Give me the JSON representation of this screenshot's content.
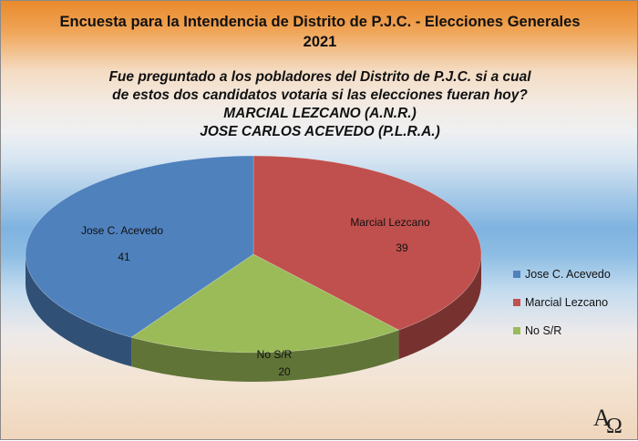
{
  "chart_data": {
    "type": "pie",
    "title": "Encuesta para la Intendencia de Distrito de P.J.C. - Elecciones Generales 2021",
    "subtitle": [
      "Fue preguntado a los pobladores del Distrito de P.J.C. si a cual",
      "de estos dos candidatos votaria si las elecciones fueran hoy?"
    ],
    "candidates": [
      "MARCIAL LEZCANO (A.N.R.)",
      "JOSE CARLOS ACEVEDO (P.L.R.A.)"
    ],
    "slices": [
      {
        "label": "Marcial Lezcano",
        "value": 39,
        "color": "#c0504d"
      },
      {
        "label": "No S/R",
        "value": 20,
        "color": "#9bbb59"
      },
      {
        "label": "Jose C. Acevedo",
        "value": 41,
        "color": "#4f81bd"
      }
    ],
    "legend_order": [
      "Jose C. Acevedo",
      "Marcial Lezcano",
      "No S/R"
    ],
    "legend_position": "right",
    "style": "3d-tilted-pie"
  },
  "watermark": "AΩ"
}
